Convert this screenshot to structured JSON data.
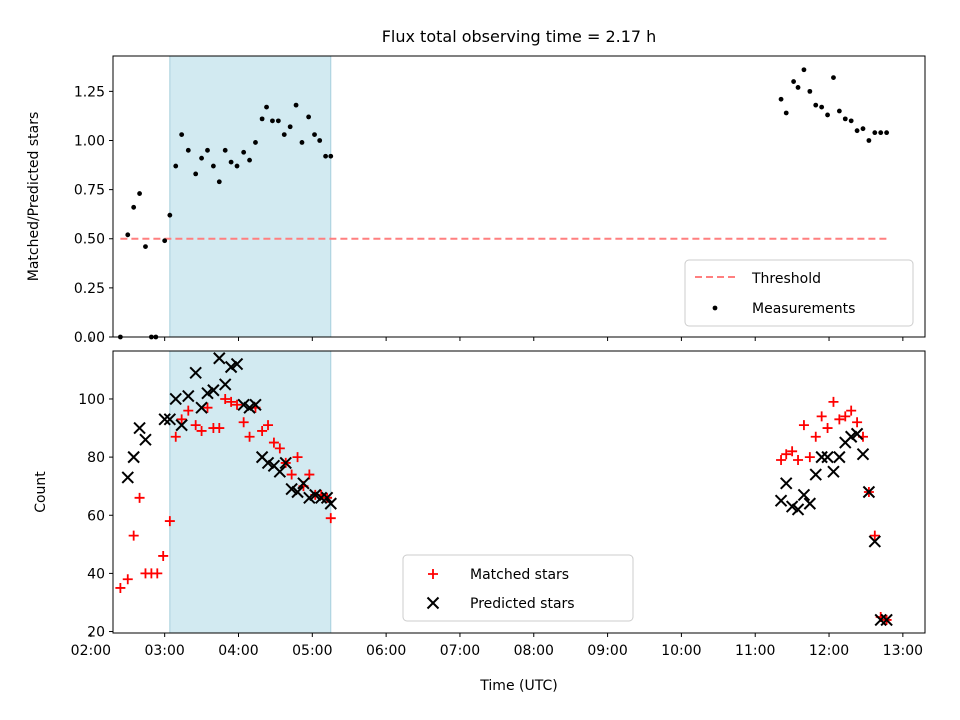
{
  "figure_title": "Flux total observing time = 2.17 h",
  "chart_data": [
    {
      "type": "scatter",
      "panel": "top",
      "title": "Flux total observing time = 2.17 h",
      "xlabel": "",
      "ylabel": "Matched/Predicted stars",
      "xlim": [
        2.3,
        13.3
      ],
      "ylim": [
        0.0,
        1.43
      ],
      "yticks": [
        0.0,
        0.25,
        0.5,
        0.75,
        1.0,
        1.25
      ],
      "ytick_labels": [
        "0.00",
        "0.25",
        "0.50",
        "0.75",
        "1.00",
        "1.25"
      ],
      "x_unit": "hours (UTC)",
      "shaded_span": [
        3.07,
        5.25
      ],
      "shaded_color": "#add8e6",
      "legend_position": "lower right",
      "threshold": {
        "name": "Threshold",
        "y": 0.5,
        "x_range": [
          2.4,
          12.78
        ],
        "color": "#ff7f7f",
        "style": "dashed"
      },
      "series": [
        {
          "name": "Measurements",
          "color": "#000000",
          "marker": "dot",
          "x": [
            2.4,
            2.5,
            2.58,
            2.66,
            2.74,
            2.82,
            2.88,
            3.0,
            3.07,
            3.15,
            3.23,
            3.32,
            3.42,
            3.5,
            3.58,
            3.66,
            3.74,
            3.82,
            3.9,
            3.98,
            4.07,
            4.15,
            4.23,
            4.32,
            4.38,
            4.46,
            4.54,
            4.62,
            4.7,
            4.78,
            4.86,
            4.95,
            5.03,
            5.1,
            5.18,
            5.25,
            11.35,
            11.42,
            11.52,
            11.58,
            11.66,
            11.74,
            11.82,
            11.9,
            11.98,
            12.06,
            12.14,
            12.22,
            12.3,
            12.38,
            12.46,
            12.54,
            12.62,
            12.7,
            12.78
          ],
          "y": [
            0.0,
            0.52,
            0.66,
            0.73,
            0.46,
            0.0,
            0.0,
            0.49,
            0.62,
            0.87,
            1.03,
            0.95,
            0.83,
            0.91,
            0.95,
            0.87,
            0.79,
            0.95,
            0.89,
            0.87,
            0.94,
            0.9,
            0.99,
            1.11,
            1.17,
            1.1,
            1.1,
            1.03,
            1.07,
            1.18,
            0.99,
            1.12,
            1.03,
            1.0,
            0.92,
            0.92,
            1.21,
            1.14,
            1.3,
            1.27,
            1.36,
            1.25,
            1.18,
            1.17,
            1.13,
            1.32,
            1.15,
            1.11,
            1.1,
            1.05,
            1.06,
            1.0,
            1.04,
            1.04,
            1.04
          ]
        }
      ]
    },
    {
      "type": "scatter",
      "panel": "bottom",
      "xlabel": "Time (UTC)",
      "ylabel": "Count",
      "xlim": [
        2.3,
        13.3
      ],
      "ylim": [
        19.5,
        116.5
      ],
      "yticks": [
        20,
        40,
        60,
        80,
        100
      ],
      "ytick_labels": [
        "20",
        "40",
        "60",
        "80",
        "100"
      ],
      "xticks": [
        2,
        3,
        4,
        5,
        6,
        7,
        8,
        9,
        10,
        11,
        12,
        13
      ],
      "xtick_labels": [
        "02:00",
        "03:00",
        "04:00",
        "05:00",
        "06:00",
        "07:00",
        "08:00",
        "09:00",
        "10:00",
        "11:00",
        "12:00",
        "13:00"
      ],
      "shaded_span": [
        3.07,
        5.25
      ],
      "shaded_color": "#add8e6",
      "legend_position": "lower center",
      "series": [
        {
          "name": "Matched stars",
          "color": "#ff0000",
          "marker": "plus",
          "x": [
            2.4,
            2.5,
            2.58,
            2.66,
            2.74,
            2.82,
            2.9,
            2.98,
            3.07,
            3.15,
            3.23,
            3.32,
            3.42,
            3.5,
            3.58,
            3.66,
            3.74,
            3.82,
            3.9,
            3.98,
            4.07,
            4.15,
            4.23,
            4.32,
            4.4,
            4.48,
            4.56,
            4.64,
            4.72,
            4.8,
            4.88,
            4.96,
            5.04,
            5.12,
            5.2,
            5.25,
            11.35,
            11.42,
            11.5,
            11.58,
            11.66,
            11.74,
            11.82,
            11.9,
            11.98,
            12.06,
            12.14,
            12.22,
            12.3,
            12.38,
            12.46,
            12.54,
            12.62,
            12.7,
            12.78
          ],
          "y": [
            35,
            38,
            53,
            66,
            40,
            40,
            40,
            46,
            58,
            87,
            93,
            96,
            91,
            89,
            97,
            90,
            90,
            100,
            99,
            98,
            92,
            87,
            97,
            89,
            91,
            85,
            83,
            78,
            74,
            80,
            70,
            74,
            67,
            67,
            66,
            59,
            79,
            81,
            82,
            79,
            91,
            80,
            87,
            94,
            90,
            99,
            93,
            94,
            96,
            92,
            87,
            68,
            53,
            25,
            24
          ]
        },
        {
          "name": "Predicted stars",
          "color": "#000000",
          "marker": "x",
          "x": [
            2.5,
            2.58,
            2.66,
            2.74,
            3.0,
            3.07,
            3.15,
            3.23,
            3.32,
            3.42,
            3.5,
            3.58,
            3.66,
            3.74,
            3.82,
            3.9,
            3.98,
            4.07,
            4.15,
            4.23,
            4.32,
            4.4,
            4.48,
            4.56,
            4.64,
            4.72,
            4.8,
            4.88,
            4.96,
            5.04,
            5.12,
            5.2,
            5.25,
            11.35,
            11.42,
            11.5,
            11.58,
            11.66,
            11.74,
            11.82,
            11.9,
            11.98,
            12.06,
            12.14,
            12.22,
            12.3,
            12.38,
            12.46,
            12.54,
            12.62,
            12.7,
            12.78
          ],
          "y": [
            73,
            80,
            90,
            86,
            93,
            93,
            100,
            91,
            101,
            109,
            97,
            102,
            103,
            114,
            105,
            111,
            112,
            98,
            97,
            98,
            80,
            78,
            77,
            75,
            78,
            69,
            68,
            71,
            66,
            67,
            66,
            66,
            64,
            65,
            71,
            63,
            62,
            67,
            64,
            74,
            80,
            80,
            75,
            80,
            85,
            87,
            88,
            81,
            68,
            51,
            24,
            24
          ]
        }
      ]
    }
  ]
}
